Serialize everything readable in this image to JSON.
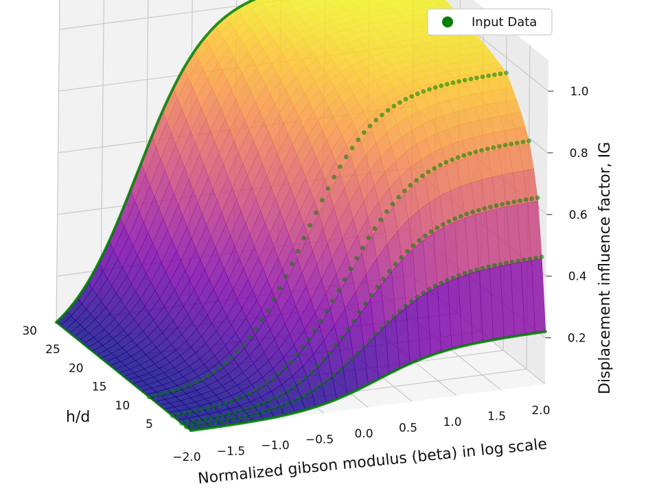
{
  "chart_data": {
    "type": "surface3d",
    "title": "",
    "xlabel": "Normalized gibson modulus (beta) in log scale",
    "ylabel": "h/d",
    "zlabel": "Displacement influence factor, IG",
    "xlim": [
      -2.0,
      2.0
    ],
    "ylim": [
      1,
      30
    ],
    "zlim": [
      0.05,
      1.1
    ],
    "x_ticks": [
      "−2.0",
      "−1.5",
      "−1.0",
      "−0.5",
      "0.0",
      "0.5",
      "1.0",
      "1.5",
      "2.0"
    ],
    "y_ticks": [
      "5",
      "10",
      "15",
      "20",
      "25",
      "30"
    ],
    "z_ticks": [
      "0.2",
      "0.4",
      "0.6",
      "0.8",
      "1.0"
    ],
    "grid": true,
    "colormap": "plasma",
    "legend": {
      "position": "top-right",
      "entries": [
        {
          "label": "Input Data",
          "color": "#008000",
          "marker": "circle"
        }
      ]
    },
    "series": [
      {
        "name": "Input Data",
        "h_over_d": [
          1,
          2,
          3,
          5,
          10,
          30
        ],
        "ig_at_beta_min": [
          0.05,
          0.05,
          0.05,
          0.05,
          0.05,
          0.05
        ],
        "ig_at_beta_max": [
          0.22,
          0.45,
          0.63,
          0.79,
          0.95,
          1.05
        ]
      }
    ]
  },
  "colors": {
    "input_data": "#008000",
    "grid": "#c8c8c8",
    "pane_back": "#f2f2f2",
    "pane_side": "#ebebeb",
    "pane_floor": "#f5f5f5"
  }
}
